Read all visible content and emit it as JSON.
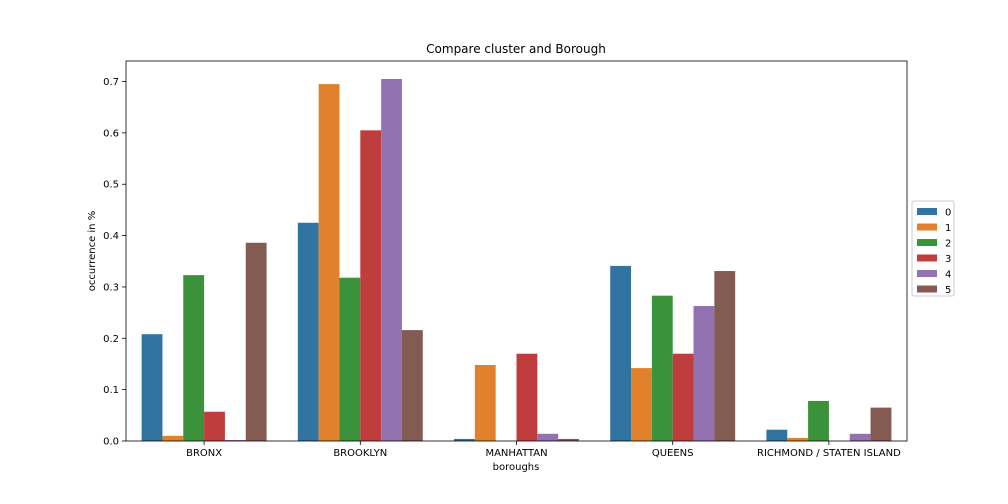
{
  "chart_data": {
    "type": "bar",
    "title": "Compare cluster and Borough",
    "xlabel": "boroughs",
    "ylabel": "occurrence in %",
    "ylim": [
      0,
      0.74
    ],
    "yticks": [
      "0.0",
      "0.1",
      "0.2",
      "0.3",
      "0.4",
      "0.5",
      "0.6",
      "0.7"
    ],
    "grid": false,
    "legend_position": "right-center",
    "categories": [
      "BRONX",
      "BROOKLYN",
      "MANHATTAN",
      "QUEENS",
      "RICHMOND / STATEN ISLAND"
    ],
    "series": [
      {
        "name": "0",
        "color": "#3274a1",
        "values": [
          0.208,
          0.425,
          0.004,
          0.341,
          0.022
        ]
      },
      {
        "name": "1",
        "color": "#e1812c",
        "values": [
          0.01,
          0.695,
          0.148,
          0.142,
          0.006
        ]
      },
      {
        "name": "2",
        "color": "#3a923a",
        "values": [
          0.323,
          0.318,
          0.0,
          0.283,
          0.078
        ]
      },
      {
        "name": "3",
        "color": "#c03d3e",
        "values": [
          0.057,
          0.605,
          0.17,
          0.17,
          0.0
        ]
      },
      {
        "name": "4",
        "color": "#9372b2",
        "values": [
          0.002,
          0.705,
          0.014,
          0.263,
          0.014
        ]
      },
      {
        "name": "5",
        "color": "#845b53",
        "values": [
          0.386,
          0.216,
          0.004,
          0.331,
          0.065
        ]
      }
    ]
  }
}
